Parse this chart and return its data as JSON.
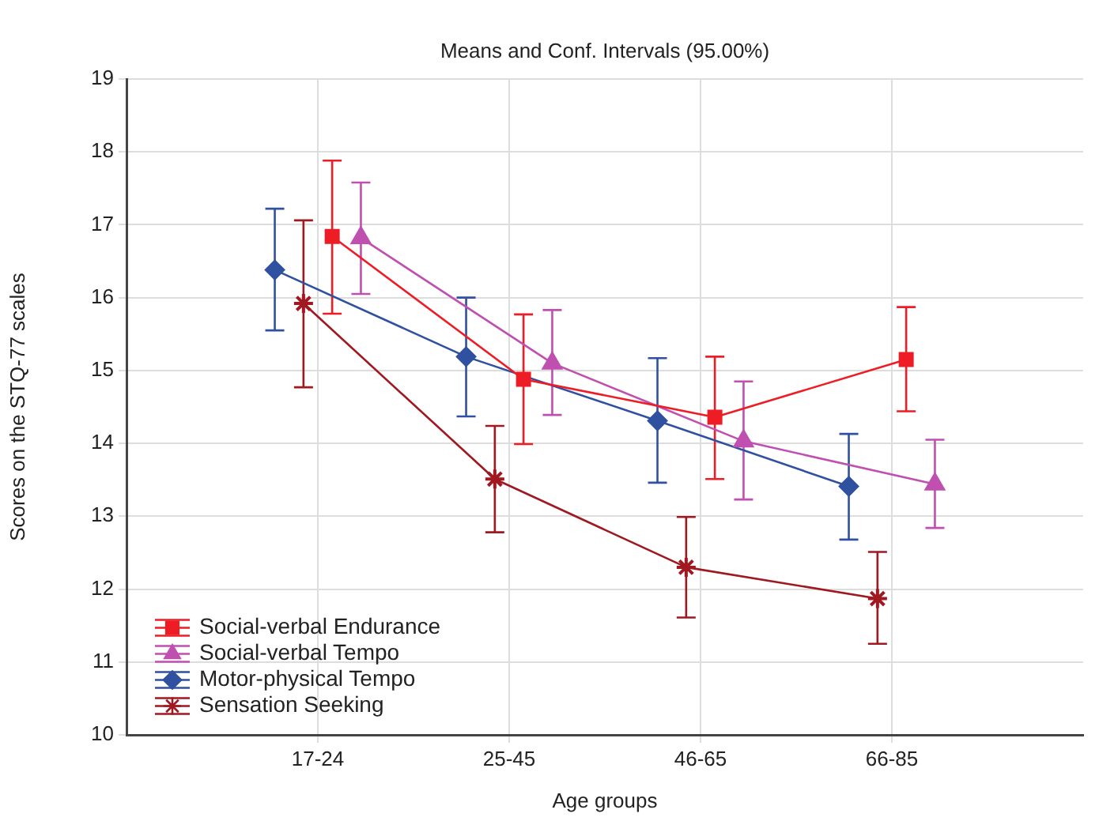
{
  "chart_data": {
    "type": "line",
    "title": "Means and Conf. Intervals (95.00%)",
    "xlabel": "Age groups",
    "ylabel": "Scores on the STQ-77 scales",
    "categories": [
      "17-24",
      "25-45",
      "46-65",
      "66-85"
    ],
    "ylim": [
      10,
      19
    ],
    "yticks": [
      10,
      11,
      12,
      13,
      14,
      15,
      16,
      17,
      18,
      19
    ],
    "grid": true,
    "legend": "bottom left",
    "line_style": "solid",
    "series": [
      {
        "name": "Social-verbal Endurance",
        "color": "#ee1c25",
        "marker": "square",
        "values": [
          16.84,
          14.88,
          14.36,
          15.15
        ],
        "errors": [
          [
            15.78,
            17.88
          ],
          [
            13.99,
            15.77
          ],
          [
            13.51,
            15.19
          ],
          [
            14.44,
            15.87
          ]
        ]
      },
      {
        "name": "Social-verbal Tempo",
        "color": "#c050b0",
        "marker": "triangle",
        "values": [
          16.82,
          15.1,
          14.03,
          13.44
        ],
        "errors": [
          [
            16.05,
            17.58
          ],
          [
            14.39,
            15.83
          ],
          [
            13.23,
            14.85
          ],
          [
            12.84,
            14.05
          ]
        ]
      },
      {
        "name": "Motor-physical Tempo",
        "color": "#3050a0",
        "marker": "diamond",
        "values": [
          16.38,
          15.19,
          14.31,
          13.41
        ],
        "errors": [
          [
            15.55,
            17.22
          ],
          [
            14.37,
            16.0
          ],
          [
            13.46,
            15.17
          ],
          [
            12.68,
            14.13
          ]
        ]
      },
      {
        "name": "Sensation Seeking",
        "color": "#a01820",
        "marker": "cross",
        "values": [
          15.92,
          13.51,
          12.3,
          11.87
        ],
        "errors": [
          [
            14.77,
            17.06
          ],
          [
            12.78,
            14.24
          ],
          [
            11.61,
            12.99
          ],
          [
            11.25,
            12.51
          ]
        ]
      }
    ]
  }
}
